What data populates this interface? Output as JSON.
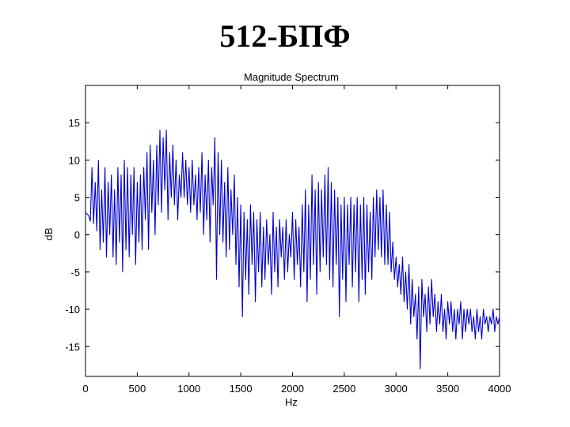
{
  "slide": {
    "title": "512-БПФ"
  },
  "chart_data": {
    "type": "line",
    "title": "Magnitude Spectrum",
    "xlabel": "Hz",
    "ylabel": "dB",
    "xlim": [
      0,
      4000
    ],
    "ylim": [
      -19,
      20
    ],
    "grid": false,
    "xticks": [
      0,
      500,
      1000,
      1500,
      2000,
      2500,
      3000,
      3500,
      4000
    ],
    "yticks": [
      -15,
      -10,
      -5,
      0,
      5,
      10,
      15
    ],
    "colors": {
      "line": "#0000cc",
      "axis": "#000000"
    },
    "series": [
      {
        "name": "Magnitude",
        "points": [
          [
            0,
            3
          ],
          [
            31,
            2.5
          ],
          [
            47,
            1.8
          ],
          [
            63,
            9
          ],
          [
            78,
            1.5
          ],
          [
            94,
            7
          ],
          [
            109,
            0.5
          ],
          [
            125,
            10
          ],
          [
            141,
            -2
          ],
          [
            156,
            6
          ],
          [
            172,
            -1
          ],
          [
            188,
            9
          ],
          [
            203,
            -3
          ],
          [
            219,
            7
          ],
          [
            234,
            0
          ],
          [
            250,
            8
          ],
          [
            266,
            -3
          ],
          [
            281,
            6
          ],
          [
            297,
            -4
          ],
          [
            313,
            9
          ],
          [
            328,
            -1
          ],
          [
            344,
            8
          ],
          [
            359,
            -5
          ],
          [
            375,
            10
          ],
          [
            391,
            -2
          ],
          [
            406,
            9
          ],
          [
            422,
            -3
          ],
          [
            438,
            8
          ],
          [
            453,
            0
          ],
          [
            469,
            9
          ],
          [
            484,
            -4
          ],
          [
            500,
            7
          ],
          [
            516,
            -1
          ],
          [
            531,
            8
          ],
          [
            547,
            -2
          ],
          [
            563,
            9
          ],
          [
            578,
            2
          ],
          [
            594,
            11
          ],
          [
            609,
            -2
          ],
          [
            625,
            12
          ],
          [
            641,
            3
          ],
          [
            656,
            10
          ],
          [
            672,
            0
          ],
          [
            688,
            12
          ],
          [
            703,
            4
          ],
          [
            719,
            14
          ],
          [
            734,
            3
          ],
          [
            750,
            13
          ],
          [
            766,
            6
          ],
          [
            781,
            14
          ],
          [
            797,
            2
          ],
          [
            813,
            11
          ],
          [
            828,
            5
          ],
          [
            844,
            12
          ],
          [
            859,
            4
          ],
          [
            875,
            10
          ],
          [
            891,
            2
          ],
          [
            906,
            8
          ],
          [
            922,
            5
          ],
          [
            938,
            11
          ],
          [
            953,
            5
          ],
          [
            969,
            10
          ],
          [
            984,
            4
          ],
          [
            1000,
            9
          ],
          [
            1016,
            3
          ],
          [
            1031,
            10
          ],
          [
            1047,
            4
          ],
          [
            1063,
            8
          ],
          [
            1078,
            2
          ],
          [
            1094,
            9
          ],
          [
            1109,
            3
          ],
          [
            1125,
            11
          ],
          [
            1141,
            0
          ],
          [
            1156,
            8
          ],
          [
            1172,
            2
          ],
          [
            1188,
            10
          ],
          [
            1203,
            -1
          ],
          [
            1219,
            9
          ],
          [
            1234,
            4
          ],
          [
            1250,
            13
          ],
          [
            1266,
            -6
          ],
          [
            1281,
            11
          ],
          [
            1297,
            0
          ],
          [
            1313,
            10
          ],
          [
            1328,
            -1
          ],
          [
            1344,
            7
          ],
          [
            1359,
            -3
          ],
          [
            1375,
            9
          ],
          [
            1391,
            -2
          ],
          [
            1406,
            6
          ],
          [
            1422,
            0
          ],
          [
            1438,
            8
          ],
          [
            1453,
            -4
          ],
          [
            1469,
            5
          ],
          [
            1484,
            -7
          ],
          [
            1500,
            4
          ],
          [
            1516,
            -11
          ],
          [
            1531,
            3
          ],
          [
            1547,
            -6
          ],
          [
            1563,
            2
          ],
          [
            1578,
            -8
          ],
          [
            1594,
            4
          ],
          [
            1609,
            -4
          ],
          [
            1625,
            3
          ],
          [
            1641,
            -9
          ],
          [
            1656,
            2
          ],
          [
            1672,
            -5
          ],
          [
            1688,
            3
          ],
          [
            1703,
            -7
          ],
          [
            1719,
            1
          ],
          [
            1734,
            -6
          ],
          [
            1750,
            2
          ],
          [
            1766,
            -4
          ],
          [
            1781,
            0
          ],
          [
            1797,
            -8
          ],
          [
            1813,
            3
          ],
          [
            1828,
            -5
          ],
          [
            1844,
            1
          ],
          [
            1859,
            -7
          ],
          [
            1875,
            2
          ],
          [
            1891,
            -3
          ],
          [
            1906,
            1
          ],
          [
            1922,
            -6
          ],
          [
            1938,
            2
          ],
          [
            1953,
            -5
          ],
          [
            1969,
            0
          ],
          [
            1984,
            -3
          ],
          [
            2000,
            3
          ],
          [
            2016,
            -6
          ],
          [
            2031,
            2
          ],
          [
            2047,
            -4
          ],
          [
            2063,
            1
          ],
          [
            2078,
            -7
          ],
          [
            2094,
            4
          ],
          [
            2109,
            -5
          ],
          [
            2125,
            6
          ],
          [
            2141,
            -9
          ],
          [
            2156,
            4
          ],
          [
            2172,
            -6
          ],
          [
            2188,
            8
          ],
          [
            2203,
            -4
          ],
          [
            2219,
            6
          ],
          [
            2234,
            -8
          ],
          [
            2250,
            7
          ],
          [
            2266,
            -5
          ],
          [
            2281,
            6
          ],
          [
            2297,
            -3
          ],
          [
            2313,
            8
          ],
          [
            2328,
            -4
          ],
          [
            2344,
            9
          ],
          [
            2359,
            -6
          ],
          [
            2375,
            7
          ],
          [
            2391,
            -7
          ],
          [
            2406,
            6
          ],
          [
            2422,
            -4
          ],
          [
            2438,
            5
          ],
          [
            2453,
            -11
          ],
          [
            2469,
            4
          ],
          [
            2484,
            -6
          ],
          [
            2500,
            5
          ],
          [
            2516,
            -9
          ],
          [
            2531,
            4
          ],
          [
            2547,
            -4
          ],
          [
            2563,
            5
          ],
          [
            2578,
            -7
          ],
          [
            2594,
            4
          ],
          [
            2609,
            -5
          ],
          [
            2625,
            5
          ],
          [
            2641,
            -9
          ],
          [
            2656,
            4
          ],
          [
            2672,
            -6
          ],
          [
            2688,
            5
          ],
          [
            2703,
            -8
          ],
          [
            2719,
            4
          ],
          [
            2734,
            -5
          ],
          [
            2750,
            3
          ],
          [
            2766,
            -6
          ],
          [
            2781,
            5
          ],
          [
            2797,
            -3
          ],
          [
            2813,
            6
          ],
          [
            2828,
            -2
          ],
          [
            2844,
            5
          ],
          [
            2859,
            -3
          ],
          [
            2875,
            6
          ],
          [
            2891,
            -4
          ],
          [
            2906,
            4
          ],
          [
            2922,
            -4
          ],
          [
            2938,
            3
          ],
          [
            2953,
            -5
          ],
          [
            2969,
            -1
          ],
          [
            2984,
            -6
          ],
          [
            3000,
            -3
          ],
          [
            3016,
            -7
          ],
          [
            3031,
            -4
          ],
          [
            3047,
            -8
          ],
          [
            3063,
            -3
          ],
          [
            3078,
            -9
          ],
          [
            3094,
            -5
          ],
          [
            3109,
            -10
          ],
          [
            3125,
            -4
          ],
          [
            3141,
            -12
          ],
          [
            3156,
            -6
          ],
          [
            3172,
            -11
          ],
          [
            3188,
            -8
          ],
          [
            3203,
            -14
          ],
          [
            3219,
            -7
          ],
          [
            3234,
            -18
          ],
          [
            3250,
            -6
          ],
          [
            3266,
            -11
          ],
          [
            3281,
            -8
          ],
          [
            3297,
            -13
          ],
          [
            3313,
            -7
          ],
          [
            3328,
            -12
          ],
          [
            3344,
            -6
          ],
          [
            3359,
            -11
          ],
          [
            3375,
            -8
          ],
          [
            3391,
            -13
          ],
          [
            3406,
            -9
          ],
          [
            3422,
            -12
          ],
          [
            3438,
            -8
          ],
          [
            3453,
            -13
          ],
          [
            3469,
            -10
          ],
          [
            3484,
            -14
          ],
          [
            3500,
            -9
          ],
          [
            3516,
            -12
          ],
          [
            3531,
            -9
          ],
          [
            3547,
            -13
          ],
          [
            3563,
            -10
          ],
          [
            3578,
            -14
          ],
          [
            3594,
            -10
          ],
          [
            3609,
            -12
          ],
          [
            3625,
            -9
          ],
          [
            3641,
            -14
          ],
          [
            3656,
            -10
          ],
          [
            3672,
            -13
          ],
          [
            3688,
            -10
          ],
          [
            3703,
            -12
          ],
          [
            3719,
            -10
          ],
          [
            3734,
            -13
          ],
          [
            3750,
            -11
          ],
          [
            3766,
            -14
          ],
          [
            3781,
            -10
          ],
          [
            3797,
            -13
          ],
          [
            3813,
            -11
          ],
          [
            3828,
            -14
          ],
          [
            3844,
            -10
          ],
          [
            3859,
            -12
          ],
          [
            3875,
            -11
          ],
          [
            3891,
            -13
          ],
          [
            3906,
            -11
          ],
          [
            3922,
            -12
          ],
          [
            3938,
            -10
          ],
          [
            3953,
            -13
          ],
          [
            3969,
            -11
          ],
          [
            3984,
            -12
          ],
          [
            4000,
            -11
          ]
        ]
      }
    ]
  }
}
